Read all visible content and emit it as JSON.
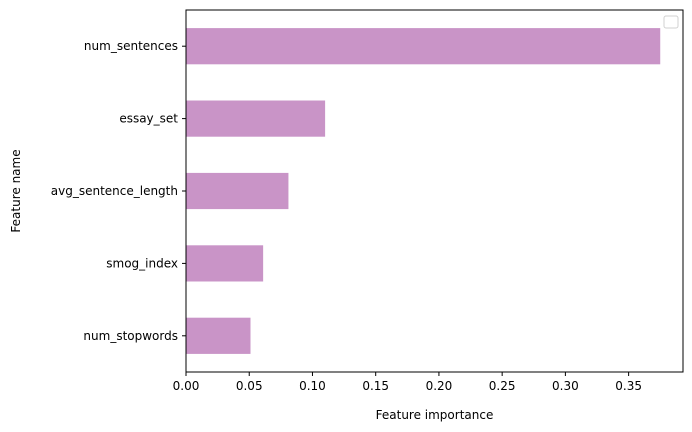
{
  "chart_data": {
    "type": "bar",
    "orientation": "horizontal",
    "categories": [
      "num_sentences",
      "essay_set",
      "avg_sentence_length",
      "smog_index",
      "num_stopwords"
    ],
    "values": [
      0.375,
      0.11,
      0.081,
      0.061,
      0.051
    ],
    "xlabel": "Feature importance",
    "ylabel": "Feature name",
    "xlim": [
      0,
      0.393
    ],
    "xticks": [
      "0.00",
      "0.05",
      "0.10",
      "0.15",
      "0.20",
      "0.25",
      "0.30",
      "0.35"
    ],
    "xtick_values": [
      0,
      0.05,
      0.1,
      0.15,
      0.2,
      0.25,
      0.3,
      0.35
    ],
    "bar_color": "#c994c7",
    "grid": false,
    "legend": "top-right (empty)"
  }
}
